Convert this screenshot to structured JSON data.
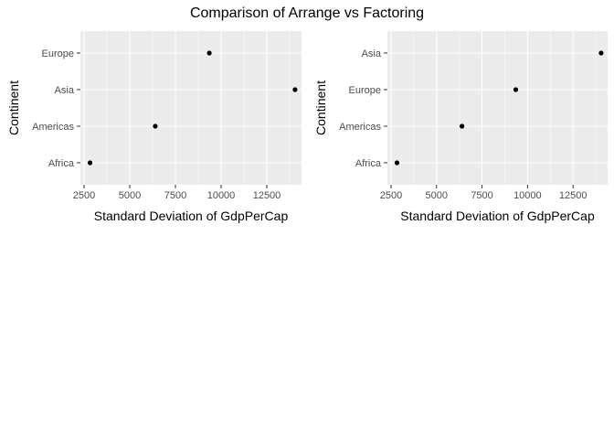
{
  "figure": {
    "title": "Comparison of Arrange vs Factoring",
    "panel_bg": "#ebebeb",
    "grid_color": "#ffffff",
    "point_color": "#000000"
  },
  "chart_data": [
    {
      "type": "scatter",
      "xlabel": "Standard Deviation of GdpPerCap",
      "ylabel": "Continent",
      "xlim": [
        2300,
        14400
      ],
      "xticks": [
        2500,
        5000,
        7500,
        10000,
        12500
      ],
      "categories": [
        "Africa",
        "Americas",
        "Asia",
        "Europe"
      ],
      "points": [
        {
          "y": "Africa",
          "x": 2827
        },
        {
          "y": "Americas",
          "x": 6397
        },
        {
          "y": "Asia",
          "x": 14045
        },
        {
          "y": "Europe",
          "x": 9355
        }
      ],
      "grid": true,
      "legend": "none"
    },
    {
      "type": "scatter",
      "xlabel": "Standard Deviation of GdpPerCap",
      "ylabel": "Continent",
      "xlim": [
        2300,
        14400
      ],
      "xticks": [
        2500,
        5000,
        7500,
        10000,
        12500
      ],
      "categories": [
        "Africa",
        "Americas",
        "Europe",
        "Asia"
      ],
      "points": [
        {
          "y": "Africa",
          "x": 2827
        },
        {
          "y": "Americas",
          "x": 6397
        },
        {
          "y": "Europe",
          "x": 9355
        },
        {
          "y": "Asia",
          "x": 14045
        }
      ],
      "grid": true,
      "legend": "none"
    }
  ]
}
